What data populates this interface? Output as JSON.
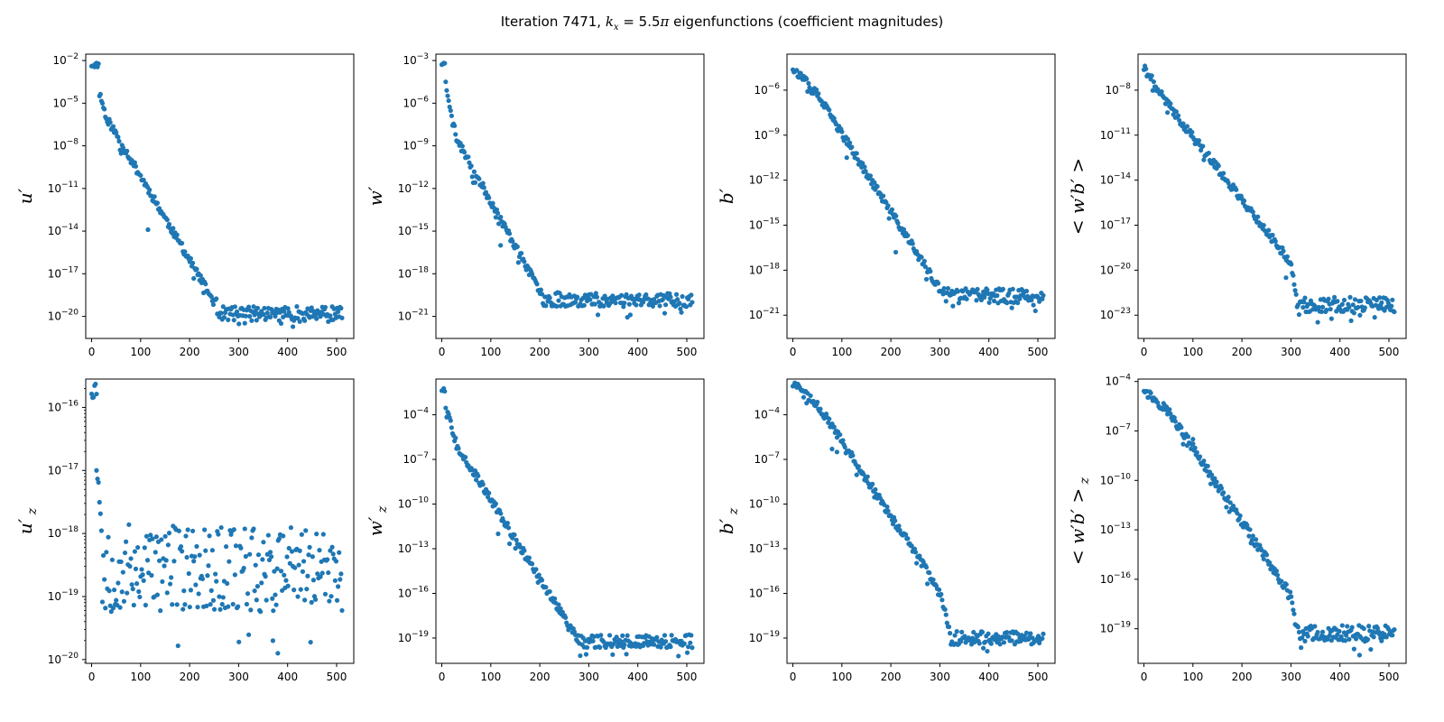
{
  "figure": {
    "title": "Iteration 7471, k_x = 5.5π eigenfunctions (coefficient magnitudes)",
    "title_parts": {
      "pre": "Iteration 7471, ",
      "k": "k",
      "sub": "x",
      "mid": " = 5.5",
      "pi": "π",
      "post": " eigenfunctions (coefficient magnitudes)"
    },
    "marker_color": "#1f77b4"
  },
  "chart_data": [
    {
      "type": "scatter",
      "id": "u",
      "ylabel": "u′",
      "ylabel_sub": "",
      "yscale": "log",
      "xlim": [
        -12,
        535
      ],
      "ylim_exp": [
        -21.55,
        -1.55
      ],
      "xticks": [
        0,
        100,
        200,
        300,
        400,
        500
      ],
      "yticks": [
        -20,
        -17,
        -14,
        -11,
        -8,
        -5,
        -2
      ],
      "points": {
        "n": 256,
        "x_max": 511,
        "start_exp": -2.3,
        "decay": [
          [
            0,
            -2.3
          ],
          [
            30,
            -6.0
          ],
          [
            250,
            -19.0
          ],
          [
            511,
            -19.0
          ]
        ],
        "floor_exp": -19.8,
        "floor_spread": 1.0,
        "floor_from": 255,
        "initial_flat": 8,
        "outliers": [
          [
            115,
            -13.9
          ]
        ],
        "seed": 11
      }
    },
    {
      "type": "scatter",
      "id": "w",
      "ylabel": "w′",
      "ylabel_sub": "",
      "yscale": "log",
      "xlim": [
        -12,
        535
      ],
      "ylim_exp": [
        -22.55,
        -2.55
      ],
      "xticks": [
        0,
        100,
        200,
        300,
        400,
        500
      ],
      "yticks": [
        -21,
        -18,
        -15,
        -12,
        -9,
        -6,
        -3
      ],
      "points": {
        "n": 256,
        "x_max": 511,
        "start_exp": -3.2,
        "decay": [
          [
            0,
            -3.2
          ],
          [
            30,
            -8.5
          ],
          [
            200,
            -19.2
          ],
          [
            511,
            -19.2
          ]
        ],
        "floor_exp": -19.8,
        "floor_spread": 1.0,
        "floor_from": 205,
        "initial_flat": 4,
        "outliers": [
          [
            120,
            -16.0
          ]
        ],
        "seed": 23
      }
    },
    {
      "type": "scatter",
      "id": "b",
      "ylabel": "b′",
      "ylabel_sub": "",
      "yscale": "log",
      "xlim": [
        -12,
        535
      ],
      "ylim_exp": [
        -22.55,
        -3.6
      ],
      "xticks": [
        0,
        100,
        200,
        300,
        400,
        500
      ],
      "yticks": [
        -21,
        -18,
        -15,
        -12,
        -9,
        -6
      ],
      "points": {
        "n": 256,
        "x_max": 511,
        "start_exp": -4.5,
        "decay": [
          [
            0,
            -4.5
          ],
          [
            50,
            -6.3
          ],
          [
            300,
            -19.3
          ],
          [
            511,
            -19.3
          ]
        ],
        "floor_exp": -19.7,
        "floor_spread": 1.0,
        "floor_from": 305,
        "initial_flat": 0,
        "outliers": [
          [
            110,
            -10.5
          ],
          [
            210,
            -16.8
          ]
        ],
        "seed": 37
      }
    },
    {
      "type": "scatter",
      "id": "wb",
      "ylabel": "< w′b′ >",
      "ylabel_sub": "",
      "yscale": "log",
      "xlim": [
        -12,
        535
      ],
      "ylim_exp": [
        -24.55,
        -5.6
      ],
      "xticks": [
        0,
        100,
        200,
        300,
        400,
        500
      ],
      "yticks": [
        -23,
        -20,
        -17,
        -14,
        -11,
        -8
      ],
      "points": {
        "n": 256,
        "x_max": 511,
        "start_exp": -6.5,
        "decay": [
          [
            0,
            -6.5
          ],
          [
            50,
            -9.0
          ],
          [
            300,
            -19.5
          ],
          [
            310,
            -21.8
          ],
          [
            511,
            -21.8
          ]
        ],
        "floor_exp": -22.3,
        "floor_spread": 1.0,
        "floor_from": 312,
        "initial_flat": 0,
        "outliers": [
          [
            290,
            -20.5
          ]
        ],
        "seed": 41
      }
    },
    {
      "type": "scatter",
      "id": "uz",
      "ylabel": "u′",
      "ylabel_sub": "z",
      "yscale": "log",
      "xlim": [
        -12,
        535
      ],
      "ylim_exp": [
        -20.06,
        -15.55
      ],
      "xticks": [
        0,
        100,
        200,
        300,
        400,
        500
      ],
      "yticks": [
        -20,
        -19,
        -18,
        -17,
        -16
      ],
      "points": {
        "n": 256,
        "x_max": 511,
        "start_exp": -15.7,
        "decay": [
          [
            0,
            -15.7
          ],
          [
            20,
            -17.8
          ],
          [
            511,
            -18.0
          ]
        ],
        "floor_exp": -18.55,
        "floor_spread": 1.4,
        "floor_from": 22,
        "initial_flat": 6,
        "outliers": [
          [
            10,
            -17.0
          ],
          [
            370,
            -19.7
          ],
          [
            380,
            -19.9
          ]
        ],
        "seed": 53
      }
    },
    {
      "type": "scatter",
      "id": "wz",
      "ylabel": "w′",
      "ylabel_sub": "z",
      "yscale": "log",
      "xlim": [
        -12,
        535
      ],
      "ylim_exp": [
        -20.7,
        -1.6
      ],
      "xticks": [
        0,
        100,
        200,
        300,
        400,
        500
      ],
      "yticks": [
        -19,
        -16,
        -13,
        -10,
        -7,
        -4
      ],
      "points": {
        "n": 256,
        "x_max": 511,
        "start_exp": -2.3,
        "decay": [
          [
            0,
            -2.3
          ],
          [
            30,
            -6.0
          ],
          [
            270,
            -18.7
          ],
          [
            511,
            -18.7
          ]
        ],
        "floor_exp": -19.2,
        "floor_spread": 0.9,
        "floor_from": 272,
        "initial_flat": 4,
        "outliers": [
          [
            115,
            -12.0
          ]
        ],
        "seed": 67
      }
    },
    {
      "type": "scatter",
      "id": "bz",
      "ylabel": "b′",
      "ylabel_sub": "z",
      "yscale": "log",
      "xlim": [
        -12,
        535
      ],
      "ylim_exp": [
        -20.7,
        -1.6
      ],
      "xticks": [
        0,
        100,
        200,
        300,
        400,
        500
      ],
      "yticks": [
        -19,
        -16,
        -13,
        -10,
        -7,
        -4
      ],
      "points": {
        "n": 256,
        "x_max": 511,
        "start_exp": -2.0,
        "decay": [
          [
            0,
            -2.0
          ],
          [
            50,
            -3.3
          ],
          [
            300,
            -15.8
          ],
          [
            320,
            -18.7
          ],
          [
            511,
            -18.7
          ]
        ],
        "floor_exp": -19.0,
        "floor_spread": 0.9,
        "floor_from": 322,
        "initial_flat": 8,
        "outliers": [
          [
            80,
            -6.3
          ],
          [
            90,
            -6.5
          ]
        ],
        "seed": 79
      }
    },
    {
      "type": "scatter",
      "id": "wbz",
      "ylabel": "< w′b′ >",
      "ylabel_sub": "z",
      "yscale": "log",
      "xlim": [
        -12,
        535
      ],
      "ylim_exp": [
        -21.1,
        -3.85
      ],
      "xticks": [
        0,
        100,
        200,
        300,
        400,
        500
      ],
      "yticks": [
        -19,
        -16,
        -13,
        -10,
        -7,
        -4
      ],
      "points": {
        "n": 256,
        "x_max": 511,
        "start_exp": -4.5,
        "decay": [
          [
            0,
            -4.5
          ],
          [
            50,
            -5.8
          ],
          [
            300,
            -17.0
          ],
          [
            310,
            -19.0
          ],
          [
            511,
            -19.0
          ]
        ],
        "floor_exp": -19.3,
        "floor_spread": 1.0,
        "floor_from": 312,
        "initial_flat": 4,
        "outliers": [
          [
            80,
            -7.8
          ],
          [
            100,
            -7.5
          ],
          [
            440,
            -20.6
          ]
        ],
        "seed": 97
      }
    }
  ]
}
